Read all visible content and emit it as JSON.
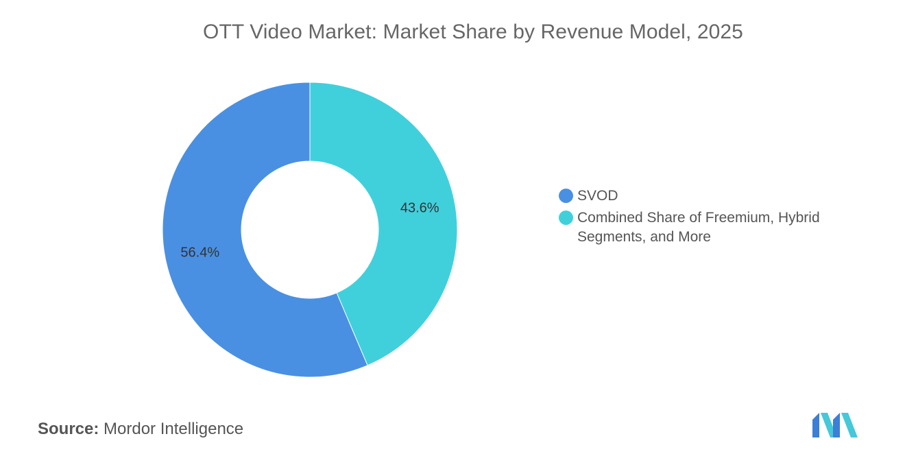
{
  "chart_data": {
    "type": "pie",
    "title": "OTT Video Market: Market Share by Revenue Model, 2025",
    "donut": true,
    "legend_position": "right",
    "slices": [
      {
        "label": "SVOD",
        "value": 56.4,
        "data_label": "56.4%",
        "color": "#4A90E2"
      },
      {
        "label": "Combined Share of Freemium, Hybrid Segments, and More",
        "value": 43.6,
        "data_label": "43.6%",
        "color": "#40D0DC"
      }
    ]
  },
  "legend": {
    "items": [
      {
        "label": "SVOD",
        "color": "#4A90E2"
      },
      {
        "label": "Combined Share of Freemium, Hybrid Segments, and More",
        "color": "#40D0DC"
      }
    ]
  },
  "source": {
    "label": "Source:",
    "value": "Mordor Intelligence"
  },
  "logo": {
    "icon": "mordor-intelligence-logo-icon",
    "colors": [
      "#3B7FD6",
      "#45C8D8"
    ]
  }
}
